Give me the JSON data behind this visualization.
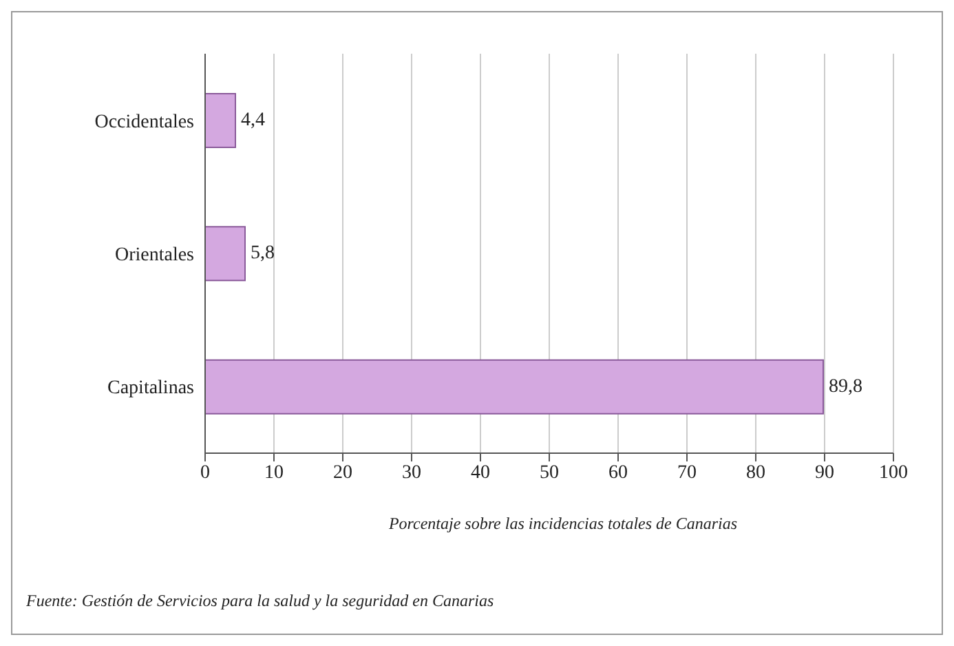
{
  "chart_data": {
    "type": "bar",
    "orientation": "horizontal",
    "categories": [
      "Occidentales",
      "Orientales",
      "Capitalinas"
    ],
    "values": [
      4.4,
      5.8,
      89.8
    ],
    "value_labels": [
      "4,4",
      "5,8",
      "89,8"
    ],
    "color": "#d4a8e0",
    "xlabel": "Porcentaje sobre las incidencias totales de Canarias",
    "xlim": [
      0,
      100
    ],
    "xticks": [
      0,
      10,
      20,
      30,
      40,
      50,
      60,
      70,
      80,
      90,
      100
    ],
    "grid": "x",
    "annotations": [
      "Fuente: Gestión de Servicios para la salud y la seguridad en Canarias"
    ]
  }
}
